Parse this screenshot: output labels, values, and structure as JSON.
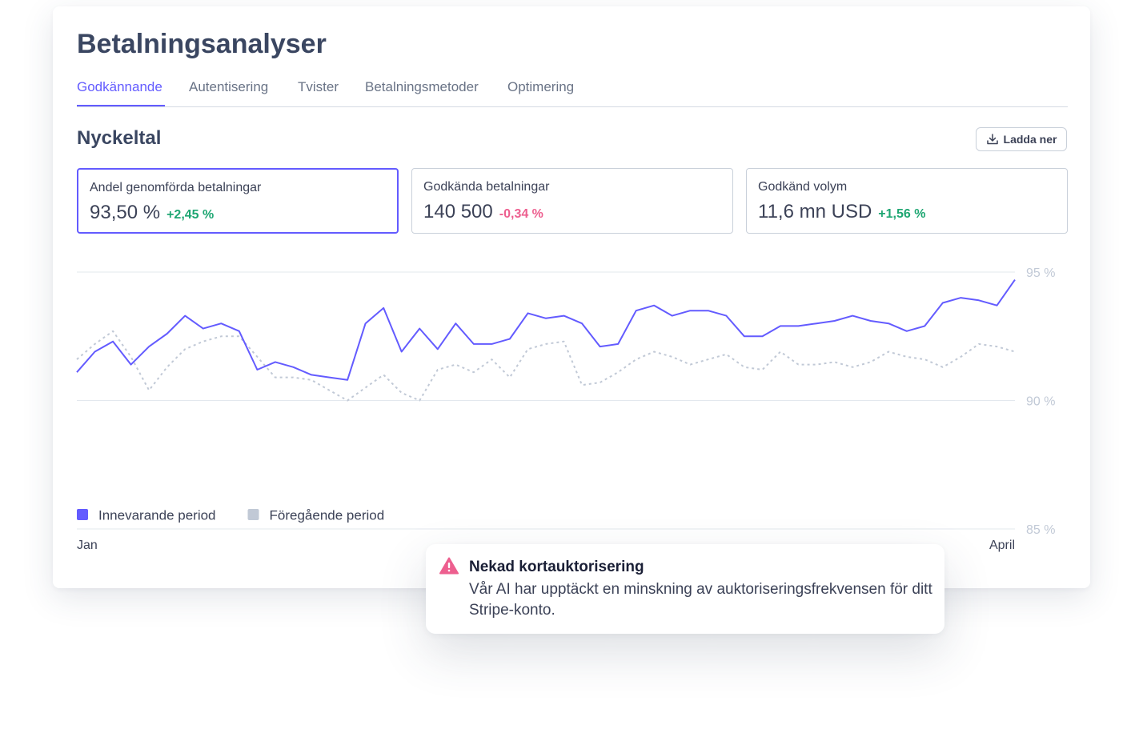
{
  "header": {
    "title": "Betalningsanalyser"
  },
  "tabs": [
    "Godkännande",
    "Autentisering",
    "Tvister",
    "Betalningsmetoder",
    "Optimering"
  ],
  "section": {
    "title": "Nyckeltal",
    "button": "Ladda ner"
  },
  "metrics": [
    {
      "label": "Andel genomförda betalningar",
      "value": "93,50 %",
      "change": "+2,45 %"
    },
    {
      "label": "Godkända betalningar",
      "value": "140 500",
      "change": "-0,34 %"
    },
    {
      "label": "Godkänd volym",
      "value": "11,6 mn USD",
      "change": "+1,56 %"
    }
  ],
  "chart_data": {
    "type": "line",
    "categories": [
      "Jan",
      null,
      null,
      null,
      null,
      null,
      null,
      null,
      null,
      null,
      null,
      null,
      null,
      null,
      null,
      null,
      null,
      null,
      null,
      null,
      null,
      null,
      null,
      null,
      null,
      null,
      null,
      null,
      null,
      null,
      null,
      null,
      null,
      null,
      null,
      null,
      null,
      null,
      null,
      null,
      null,
      null,
      null,
      null,
      null,
      null,
      null,
      null,
      null,
      null,
      null,
      null,
      "April"
    ],
    "series": [
      {
        "name": "Innevarande period",
        "color": "#635bff",
        "dashed": false,
        "values": [
          91.1,
          91.9,
          92.3,
          91.4,
          92.1,
          92.6,
          93.3,
          92.8,
          93.0,
          92.7,
          91.2,
          91.5,
          91.3,
          91.0,
          90.9,
          90.8,
          93.0,
          93.6,
          91.9,
          92.8,
          92.0,
          93.0,
          92.2,
          92.2,
          92.4,
          93.4,
          93.2,
          93.3,
          93.0,
          92.1,
          92.2,
          93.5,
          93.7,
          93.3,
          93.5,
          93.5,
          93.3,
          92.5,
          92.5,
          92.9,
          92.9,
          93.0,
          93.1,
          93.3,
          93.1,
          93.0,
          92.7,
          92.9,
          93.8,
          94.0,
          93.9,
          93.7,
          94.7
        ]
      },
      {
        "name": "Föregående period",
        "color": "#c1c9d6",
        "dashed": true,
        "values": [
          91.6,
          92.2,
          92.7,
          91.7,
          90.4,
          91.3,
          92.0,
          92.3,
          92.5,
          92.5,
          91.7,
          90.9,
          90.9,
          90.8,
          90.4,
          90.0,
          90.5,
          91.0,
          90.3,
          90.0,
          91.2,
          91.4,
          91.1,
          91.6,
          90.9,
          92.0,
          92.2,
          92.3,
          90.6,
          90.7,
          91.1,
          91.6,
          91.9,
          91.7,
          91.4,
          91.6,
          91.8,
          91.3,
          91.2,
          91.9,
          91.4,
          91.4,
          91.5,
          91.3,
          91.5,
          91.9,
          91.7,
          91.6,
          91.3,
          91.7,
          92.2,
          92.1,
          91.9
        ]
      }
    ],
    "ylim": [
      85,
      95
    ],
    "yticks": [
      {
        "value": 85,
        "label": "85 %"
      },
      {
        "value": 90,
        "label": "90 %"
      },
      {
        "value": 95,
        "label": "95 %"
      }
    ],
    "grid": true,
    "legend": "bottom-left"
  },
  "alert": {
    "title": "Nekad kortauktorisering",
    "body": "Vår AI har upptäckt en minskning av auktoriseringsfrekvensen för ditt Stripe-konto."
  }
}
